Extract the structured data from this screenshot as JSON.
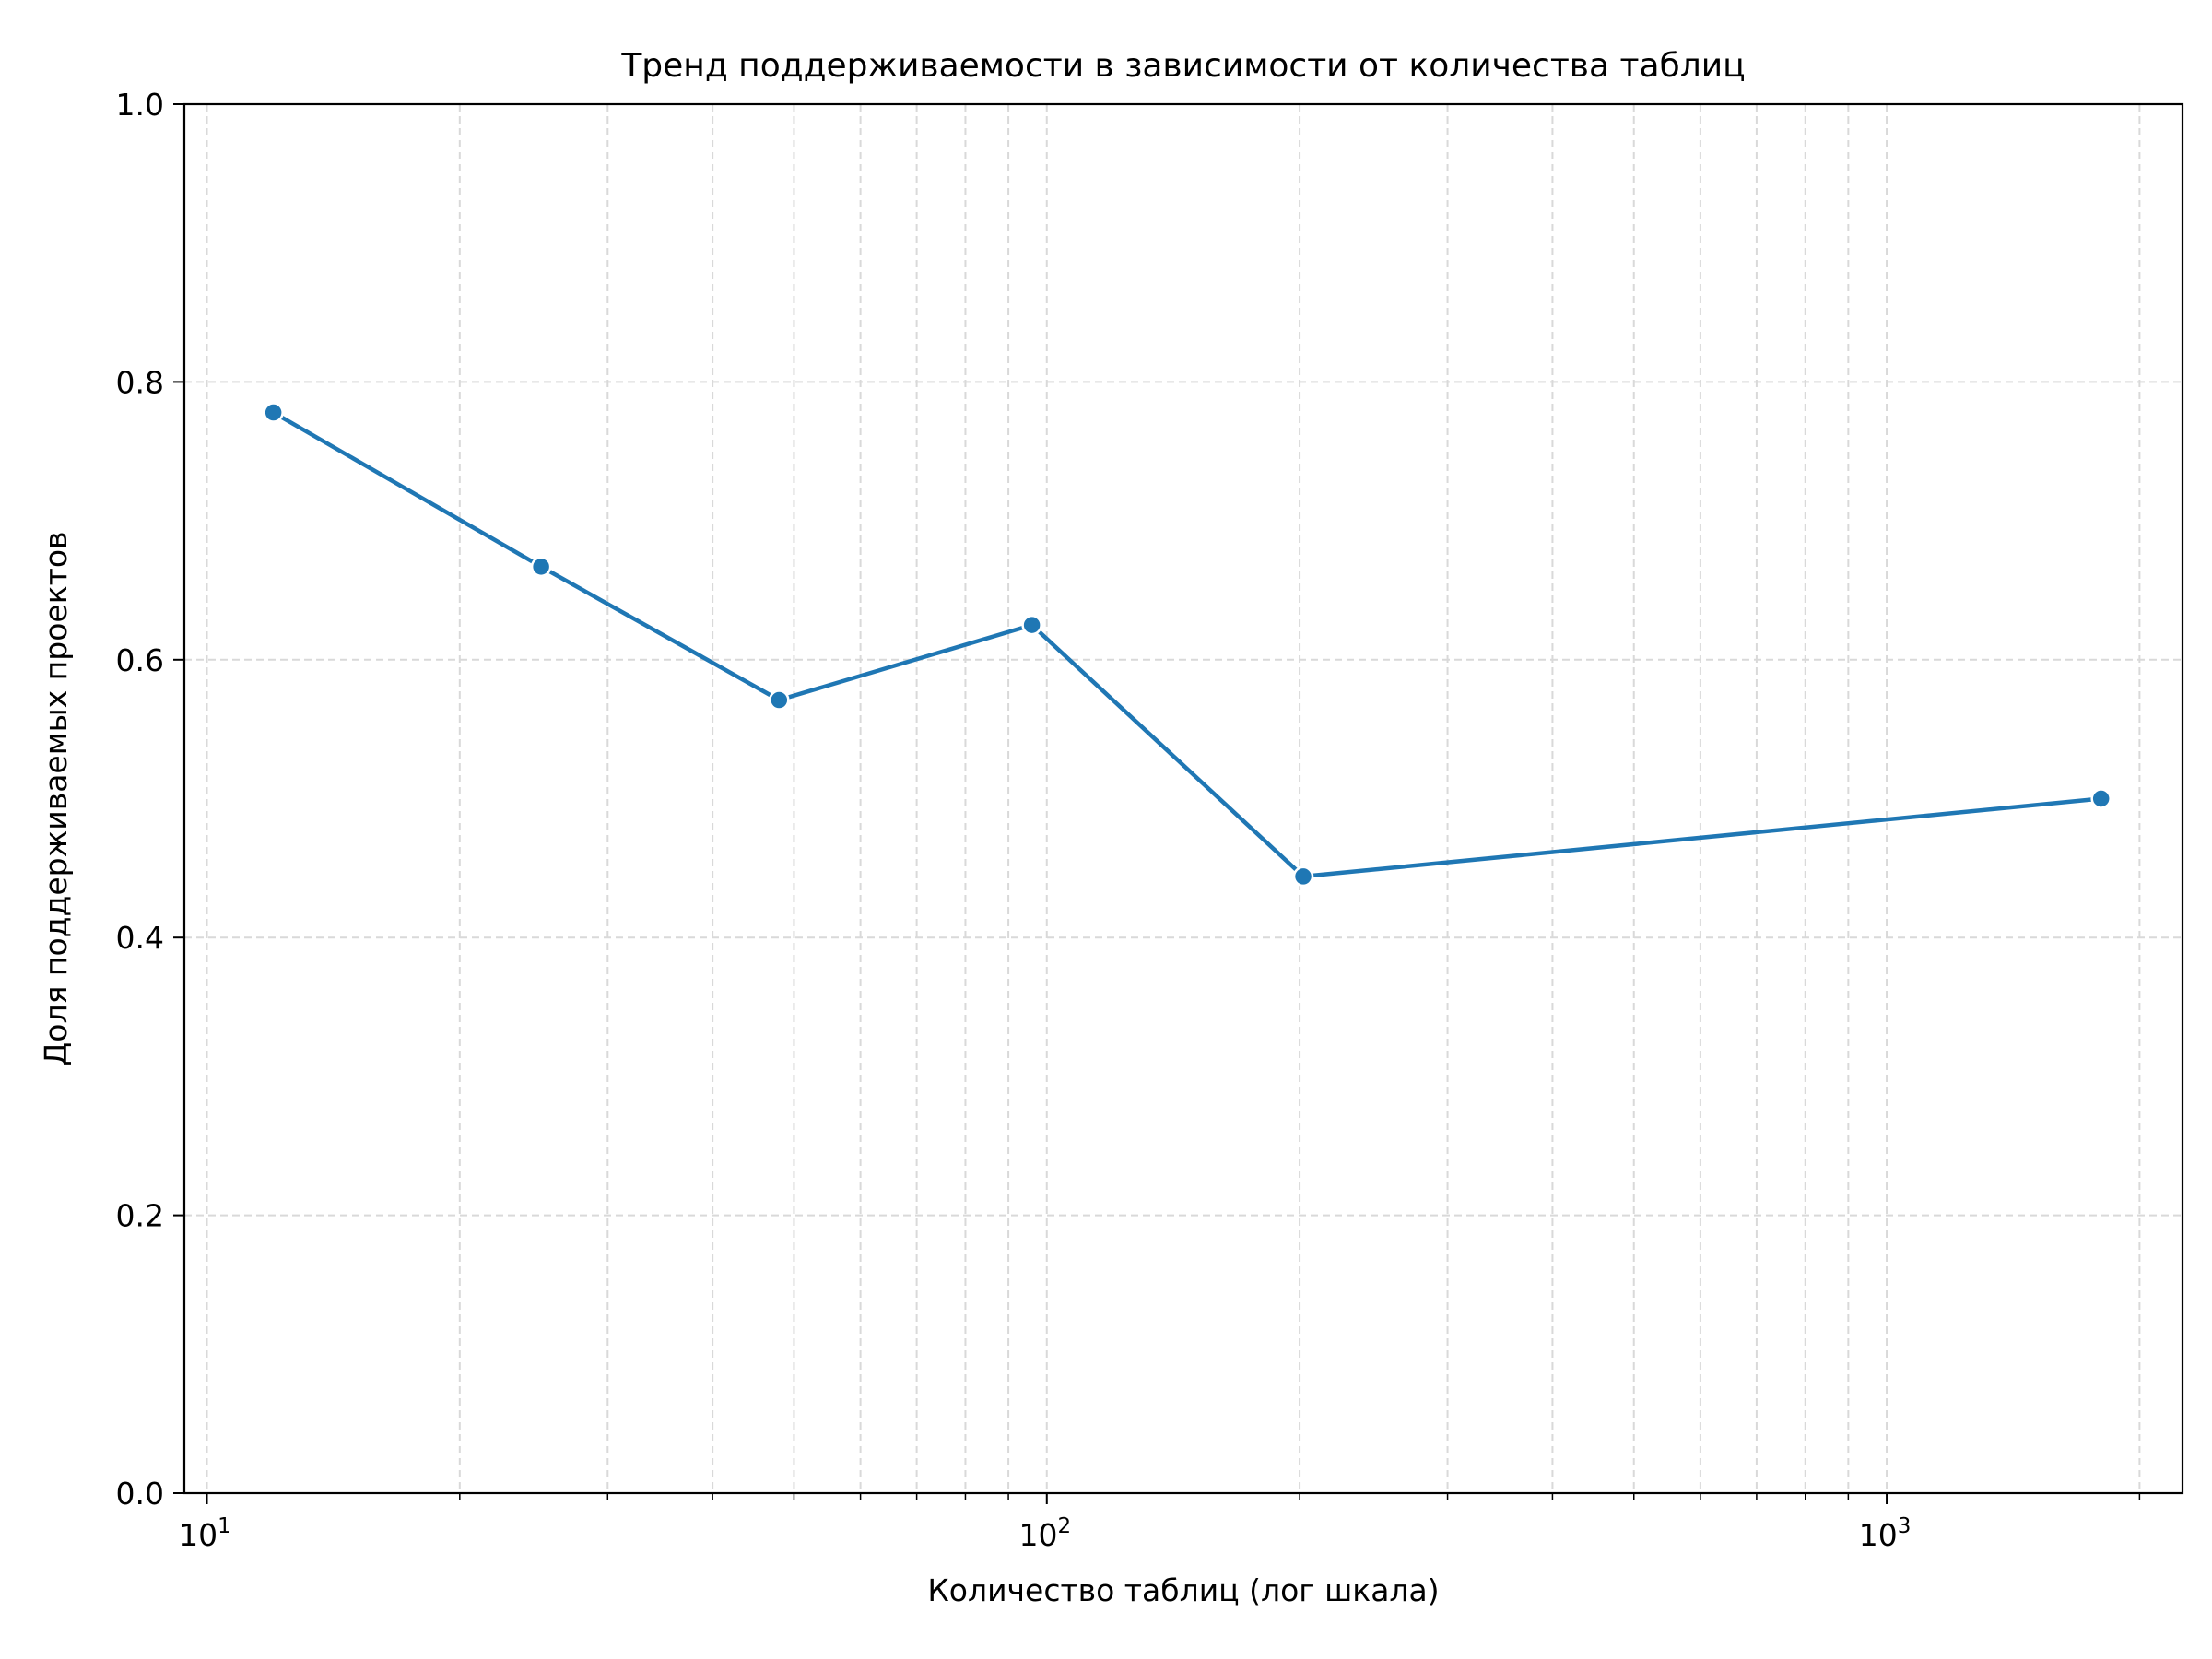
{
  "chart_data": {
    "type": "line",
    "title": "Тренд поддерживаемости в зависимости от количества таблиц",
    "xlabel": "Количество таблиц (лог шкала)",
    "ylabel": "Доля поддерживаемых проектов",
    "x_scale": "log",
    "xlim": [
      9.4,
      2250
    ],
    "ylim": [
      0,
      1.0
    ],
    "x_ticks": [
      {
        "value": 10,
        "base": "10",
        "exp": "1"
      },
      {
        "value": 100,
        "base": "10",
        "exp": "2"
      },
      {
        "value": 1000,
        "base": "10",
        "exp": "3"
      }
    ],
    "y_ticks": [
      "0.0",
      "0.2",
      "0.4",
      "0.6",
      "0.8",
      "1.0"
    ],
    "grid": true,
    "legend": "none",
    "series": [
      {
        "color": "#1f77b4",
        "x": [
          12,
          25,
          48,
          96,
          202,
          1800
        ],
        "y": [
          0.778,
          0.667,
          0.571,
          0.625,
          0.444,
          0.5
        ]
      }
    ]
  }
}
